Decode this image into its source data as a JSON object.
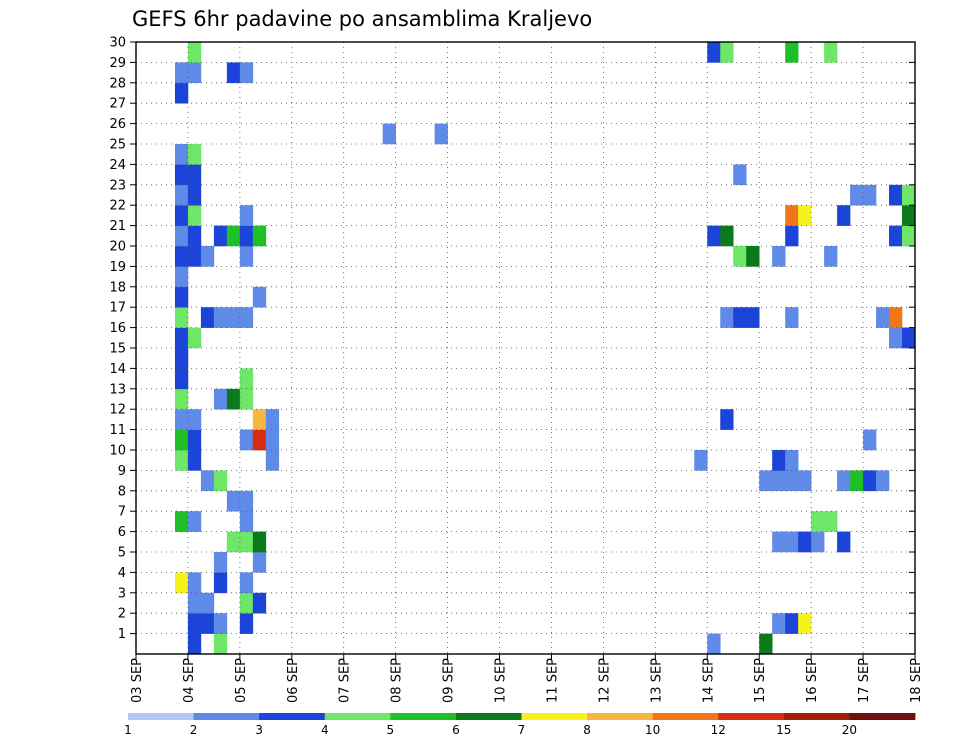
{
  "chart_data": {
    "type": "heatmap",
    "title": "GEFS 6hr padavine po ansamblima Kraljevo",
    "xlabel": "",
    "ylabel": "",
    "x_ticks": [
      "03 SEP",
      "04 SEP",
      "05 SEP",
      "06 SEP",
      "07 SEP",
      "08 SEP",
      "09 SEP",
      "10 SEP",
      "11 SEP",
      "12 SEP",
      "13 SEP",
      "14 SEP",
      "15 SEP",
      "16 SEP",
      "17 SEP",
      "18 SEP"
    ],
    "x_range": [
      "2025-09-03 00:00",
      "2025-09-18 00:00"
    ],
    "x_step_hours": 6,
    "y_ticks": [
      1,
      2,
      3,
      4,
      5,
      6,
      7,
      8,
      9,
      10,
      11,
      12,
      13,
      14,
      15,
      16,
      17,
      18,
      19,
      20,
      21,
      22,
      23,
      24,
      25,
      26,
      27,
      28,
      29,
      30
    ],
    "y_range": [
      0,
      30
    ],
    "grid": true,
    "colorbar": {
      "labels": [
        "1",
        "2",
        "3",
        "4",
        "5",
        "6",
        "7",
        "8",
        "10",
        "12",
        "15",
        "20"
      ],
      "colors": [
        "#b3c6f5",
        "#5f8ae8",
        "#1c44d8",
        "#6ee667",
        "#1fbf28",
        "#0b7a1b",
        "#f6f21e",
        "#f7b640",
        "#f2751a",
        "#d72d14",
        "#a01e0a",
        "#6e0e0e"
      ]
    },
    "cells": [
      {
        "t": "2025-09-04 00:00",
        "m": 0,
        "c": 2
      },
      {
        "t": "2025-09-04 12:00",
        "m": 0,
        "c": 3
      },
      {
        "t": "2025-09-04 00:00",
        "m": 1,
        "c": 2
      },
      {
        "t": "2025-09-04 06:00",
        "m": 1,
        "c": 2
      },
      {
        "t": "2025-09-04 12:00",
        "m": 1,
        "c": 1
      },
      {
        "t": "2025-09-05 00:00",
        "m": 1,
        "c": 2
      },
      {
        "t": "2025-09-04 00:00",
        "m": 2,
        "c": 1
      },
      {
        "t": "2025-09-04 06:00",
        "m": 2,
        "c": 1
      },
      {
        "t": "2025-09-05 00:00",
        "m": 2,
        "c": 3
      },
      {
        "t": "2025-09-05 06:00",
        "m": 2,
        "c": 2
      },
      {
        "t": "2025-09-03 18:00",
        "m": 3,
        "c": 6
      },
      {
        "t": "2025-09-04 00:00",
        "m": 3,
        "c": 1
      },
      {
        "t": "2025-09-04 12:00",
        "m": 3,
        "c": 2
      },
      {
        "t": "2025-09-05 00:00",
        "m": 3,
        "c": 1
      },
      {
        "t": "2025-09-04 12:00",
        "m": 4,
        "c": 1
      },
      {
        "t": "2025-09-05 06:00",
        "m": 4,
        "c": 1
      },
      {
        "t": "2025-09-04 18:00",
        "m": 5,
        "c": 3
      },
      {
        "t": "2025-09-05 00:00",
        "m": 5,
        "c": 3
      },
      {
        "t": "2025-09-05 06:00",
        "m": 5,
        "c": 5
      },
      {
        "t": "2025-09-03 18:00",
        "m": 6,
        "c": 4
      },
      {
        "t": "2025-09-04 00:00",
        "m": 6,
        "c": 1
      },
      {
        "t": "2025-09-05 00:00",
        "m": 6,
        "c": 1
      },
      {
        "t": "2025-09-04 18:00",
        "m": 7,
        "c": 1
      },
      {
        "t": "2025-09-05 00:00",
        "m": 7,
        "c": 1
      },
      {
        "t": "2025-09-04 06:00",
        "m": 8,
        "c": 1
      },
      {
        "t": "2025-09-04 12:00",
        "m": 8,
        "c": 3
      },
      {
        "t": "2025-09-03 18:00",
        "m": 9,
        "c": 3
      },
      {
        "t": "2025-09-04 00:00",
        "m": 9,
        "c": 2
      },
      {
        "t": "2025-09-05 12:00",
        "m": 9,
        "c": 1
      },
      {
        "t": "2025-09-03 18:00",
        "m": 10,
        "c": 4
      },
      {
        "t": "2025-09-04 00:00",
        "m": 10,
        "c": 2
      },
      {
        "t": "2025-09-05 00:00",
        "m": 10,
        "c": 1
      },
      {
        "t": "2025-09-05 06:00",
        "m": 10,
        "c": 9
      },
      {
        "t": "2025-09-05 06:00",
        "m": 10,
        "c": 9
      },
      {
        "t": "2025-09-05 12:00",
        "m": 10,
        "c": 1
      },
      {
        "t": "2025-09-03 18:00",
        "m": 11,
        "c": 1
      },
      {
        "t": "2025-09-04 00:00",
        "m": 11,
        "c": 1
      },
      {
        "t": "2025-09-05 06:00",
        "m": 11,
        "c": 7
      },
      {
        "t": "2025-09-05 12:00",
        "m": 11,
        "c": 1
      },
      {
        "t": "2025-09-03 18:00",
        "m": 12,
        "c": 3
      },
      {
        "t": "2025-09-04 12:00",
        "m": 12,
        "c": 1
      },
      {
        "t": "2025-09-04 18:00",
        "m": 12,
        "c": 5
      },
      {
        "t": "2025-09-05 00:00",
        "m": 12,
        "c": 3
      },
      {
        "t": "2025-09-03 18:00",
        "m": 13,
        "c": 2
      },
      {
        "t": "2025-09-05 00:00",
        "m": 13,
        "c": 3
      },
      {
        "t": "2025-09-03 18:00",
        "m": 14,
        "c": 2
      },
      {
        "t": "2025-09-03 18:00",
        "m": 15,
        "c": 2
      },
      {
        "t": "2025-09-04 00:00",
        "m": 15,
        "c": 3
      },
      {
        "t": "2025-09-03 18:00",
        "m": 16,
        "c": 3
      },
      {
        "t": "2025-09-04 06:00",
        "m": 16,
        "c": 2
      },
      {
        "t": "2025-09-04 12:00",
        "m": 16,
        "c": 1
      },
      {
        "t": "2025-09-04 18:00",
        "m": 16,
        "c": 1
      },
      {
        "t": "2025-09-05 00:00",
        "m": 16,
        "c": 1
      },
      {
        "t": "2025-09-03 18:00",
        "m": 17,
        "c": 2
      },
      {
        "t": "2025-09-05 06:00",
        "m": 17,
        "c": 1
      },
      {
        "t": "2025-09-03 18:00",
        "m": 18,
        "c": 1
      },
      {
        "t": "2025-09-03 18:00",
        "m": 19,
        "c": 2
      },
      {
        "t": "2025-09-04 00:00",
        "m": 19,
        "c": 2
      },
      {
        "t": "2025-09-04 06:00",
        "m": 19,
        "c": 1
      },
      {
        "t": "2025-09-05 00:00",
        "m": 19,
        "c": 1
      },
      {
        "t": "2025-09-03 18:00",
        "m": 20,
        "c": 1
      },
      {
        "t": "2025-09-04 00:00",
        "m": 20,
        "c": 2
      },
      {
        "t": "2025-09-04 12:00",
        "m": 20,
        "c": 2
      },
      {
        "t": "2025-09-04 18:00",
        "m": 20,
        "c": 4
      },
      {
        "t": "2025-09-05 00:00",
        "m": 20,
        "c": 2
      },
      {
        "t": "2025-09-05 06:00",
        "m": 20,
        "c": 4
      },
      {
        "t": "2025-09-03 18:00",
        "m": 21,
        "c": 2
      },
      {
        "t": "2025-09-04 00:00",
        "m": 21,
        "c": 3
      },
      {
        "t": "2025-09-05 00:00",
        "m": 21,
        "c": 1
      },
      {
        "t": "2025-09-03 18:00",
        "m": 22,
        "c": 1
      },
      {
        "t": "2025-09-04 00:00",
        "m": 22,
        "c": 2
      },
      {
        "t": "2025-09-03 18:00",
        "m": 23,
        "c": 2
      },
      {
        "t": "2025-09-04 00:00",
        "m": 23,
        "c": 2
      },
      {
        "t": "2025-09-03 18:00",
        "m": 24,
        "c": 1
      },
      {
        "t": "2025-09-04 00:00",
        "m": 24,
        "c": 3
      },
      {
        "t": "2025-09-07 18:00",
        "m": 25,
        "c": 1
      },
      {
        "t": "2025-09-08 18:00",
        "m": 25,
        "c": 1
      },
      {
        "t": "2025-09-03 18:00",
        "m": 27,
        "c": 2
      },
      {
        "t": "2025-09-03 18:00",
        "m": 28,
        "c": 1
      },
      {
        "t": "2025-09-04 00:00",
        "m": 28,
        "c": 1
      },
      {
        "t": "2025-09-04 18:00",
        "m": 28,
        "c": 2
      },
      {
        "t": "2025-09-05 00:00",
        "m": 28,
        "c": 1
      },
      {
        "t": "2025-09-04 00:00",
        "m": 29,
        "c": 3
      },
      {
        "t": "2025-09-14 00:00",
        "m": 0,
        "c": 1
      },
      {
        "t": "2025-09-15 00:00",
        "m": 0,
        "c": 5
      },
      {
        "t": "2025-09-15 06:00",
        "m": 1,
        "c": 1
      },
      {
        "t": "2025-09-15 12:00",
        "m": 1,
        "c": 2
      },
      {
        "t": "2025-09-15 18:00",
        "m": 1,
        "c": 6
      },
      {
        "t": "2025-09-15 06:00",
        "m": 5,
        "c": 1
      },
      {
        "t": "2025-09-15 12:00",
        "m": 5,
        "c": 1
      },
      {
        "t": "2025-09-15 18:00",
        "m": 5,
        "c": 2
      },
      {
        "t": "2025-09-16 00:00",
        "m": 5,
        "c": 1
      },
      {
        "t": "2025-09-16 12:00",
        "m": 5,
        "c": 2
      },
      {
        "t": "2025-09-16 00:00",
        "m": 6,
        "c": 3
      },
      {
        "t": "2025-09-16 06:00",
        "m": 6,
        "c": 3
      },
      {
        "t": "2025-09-15 00:00",
        "m": 8,
        "c": 1
      },
      {
        "t": "2025-09-15 06:00",
        "m": 8,
        "c": 1
      },
      {
        "t": "2025-09-15 12:00",
        "m": 8,
        "c": 1
      },
      {
        "t": "2025-09-15 18:00",
        "m": 8,
        "c": 1
      },
      {
        "t": "2025-09-16 12:00",
        "m": 8,
        "c": 1
      },
      {
        "t": "2025-09-16 18:00",
        "m": 8,
        "c": 4
      },
      {
        "t": "2025-09-17 00:00",
        "m": 8,
        "c": 2
      },
      {
        "t": "2025-09-17 06:00",
        "m": 8,
        "c": 1
      },
      {
        "t": "2025-09-13 18:00",
        "m": 9,
        "c": 1
      },
      {
        "t": "2025-09-15 06:00",
        "m": 9,
        "c": 2
      },
      {
        "t": "2025-09-15 12:00",
        "m": 9,
        "c": 1
      },
      {
        "t": "2025-09-17 00:00",
        "m": 10,
        "c": 1
      },
      {
        "t": "2025-09-14 06:00",
        "m": 11,
        "c": 2
      },
      {
        "t": "2025-09-14 06:00",
        "m": 16,
        "c": 1
      },
      {
        "t": "2025-09-14 12:00",
        "m": 16,
        "c": 2
      },
      {
        "t": "2025-09-14 18:00",
        "m": 16,
        "c": 2
      },
      {
        "t": "2025-09-15 12:00",
        "m": 16,
        "c": 1
      },
      {
        "t": "2025-09-17 06:00",
        "m": 16,
        "c": 1
      },
      {
        "t": "2025-09-17 12:00",
        "m": 16,
        "c": 8
      },
      {
        "t": "2025-09-17 12:00",
        "m": 15,
        "c": 1
      },
      {
        "t": "2025-09-17 18:00",
        "m": 15,
        "c": 2
      },
      {
        "t": "2025-09-14 12:00",
        "m": 19,
        "c": 3
      },
      {
        "t": "2025-09-14 18:00",
        "m": 19,
        "c": 5
      },
      {
        "t": "2025-09-15 06:00",
        "m": 19,
        "c": 1
      },
      {
        "t": "2025-09-16 06:00",
        "m": 19,
        "c": 1
      },
      {
        "t": "2025-09-14 00:00",
        "m": 20,
        "c": 2
      },
      {
        "t": "2025-09-14 06:00",
        "m": 20,
        "c": 5
      },
      {
        "t": "2025-09-15 12:00",
        "m": 20,
        "c": 2
      },
      {
        "t": "2025-09-17 12:00",
        "m": 20,
        "c": 2
      },
      {
        "t": "2025-09-17 18:00",
        "m": 20,
        "c": 3
      },
      {
        "t": "2025-09-15 12:00",
        "m": 21,
        "c": 8
      },
      {
        "t": "2025-09-15 18:00",
        "m": 21,
        "c": 6
      },
      {
        "t": "2025-09-16 12:00",
        "m": 21,
        "c": 2
      },
      {
        "t": "2025-09-17 18:00",
        "m": 21,
        "c": 5
      },
      {
        "t": "2025-09-16 18:00",
        "m": 22,
        "c": 1
      },
      {
        "t": "2025-09-17 00:00",
        "m": 22,
        "c": 1
      },
      {
        "t": "2025-09-17 12:00",
        "m": 22,
        "c": 2
      },
      {
        "t": "2025-09-17 18:00",
        "m": 22,
        "c": 3
      },
      {
        "t": "2025-09-14 12:00",
        "m": 23,
        "c": 1
      },
      {
        "t": "2025-09-14 00:00",
        "m": 29,
        "c": 2
      },
      {
        "t": "2025-09-14 06:00",
        "m": 29,
        "c": 3
      },
      {
        "t": "2025-09-15 12:00",
        "m": 29,
        "c": 4
      },
      {
        "t": "2025-09-16 06:00",
        "m": 29,
        "c": 3
      }
    ]
  }
}
